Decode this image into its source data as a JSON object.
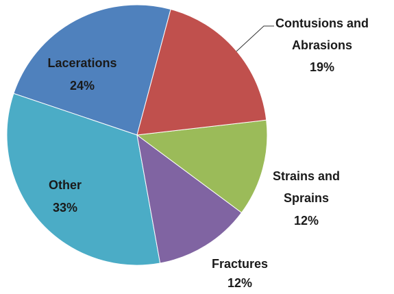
{
  "chart_data": {
    "type": "pie",
    "categories": [
      "Contusions and Abrasions",
      "Strains and Sprains",
      "Fractures",
      "Other",
      "Lacerations"
    ],
    "values": [
      19,
      12,
      12,
      33,
      24
    ],
    "value_labels": [
      "19%",
      "12%",
      "12%",
      "33%",
      "24%"
    ],
    "colors": [
      "#c0504d",
      "#9bbb59",
      "#8064a2",
      "#4bacc6",
      "#4f81bd"
    ]
  }
}
